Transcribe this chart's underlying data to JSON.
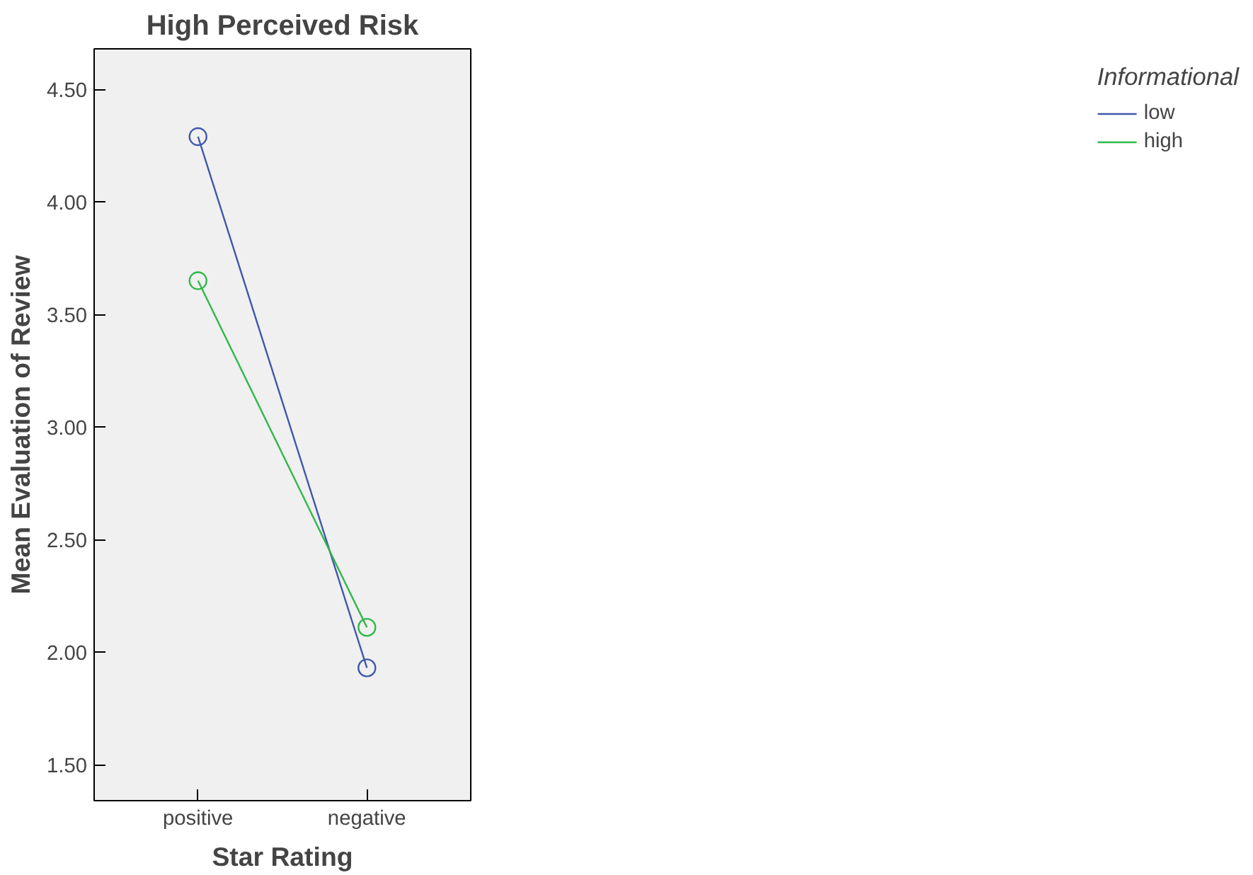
{
  "chart_data": {
    "type": "line",
    "title": "High Perceived Risk",
    "xlabel": "Star Rating",
    "ylabel": "Mean Evaluation of Review",
    "legend_title": "Informational",
    "categories": [
      "positive",
      "negative"
    ],
    "series": [
      {
        "name": "low",
        "color": "#3e58ac",
        "values": [
          4.29,
          1.93
        ]
      },
      {
        "name": "high",
        "color": "#2eb848",
        "values": [
          3.65,
          2.11
        ]
      }
    ],
    "ylim": [
      1.34,
      4.68
    ],
    "yticks": [
      {
        "value": 1.5,
        "label": "1.50"
      },
      {
        "value": 2.0,
        "label": "2.00"
      },
      {
        "value": 2.5,
        "label": "2.50"
      },
      {
        "value": 3.0,
        "label": "3.00"
      },
      {
        "value": 3.5,
        "label": "3.50"
      },
      {
        "value": 4.0,
        "label": "4.00"
      },
      {
        "value": 4.5,
        "label": "4.50"
      }
    ],
    "grid": false,
    "legend": "right",
    "marker": "circle",
    "line_style": "solid"
  }
}
